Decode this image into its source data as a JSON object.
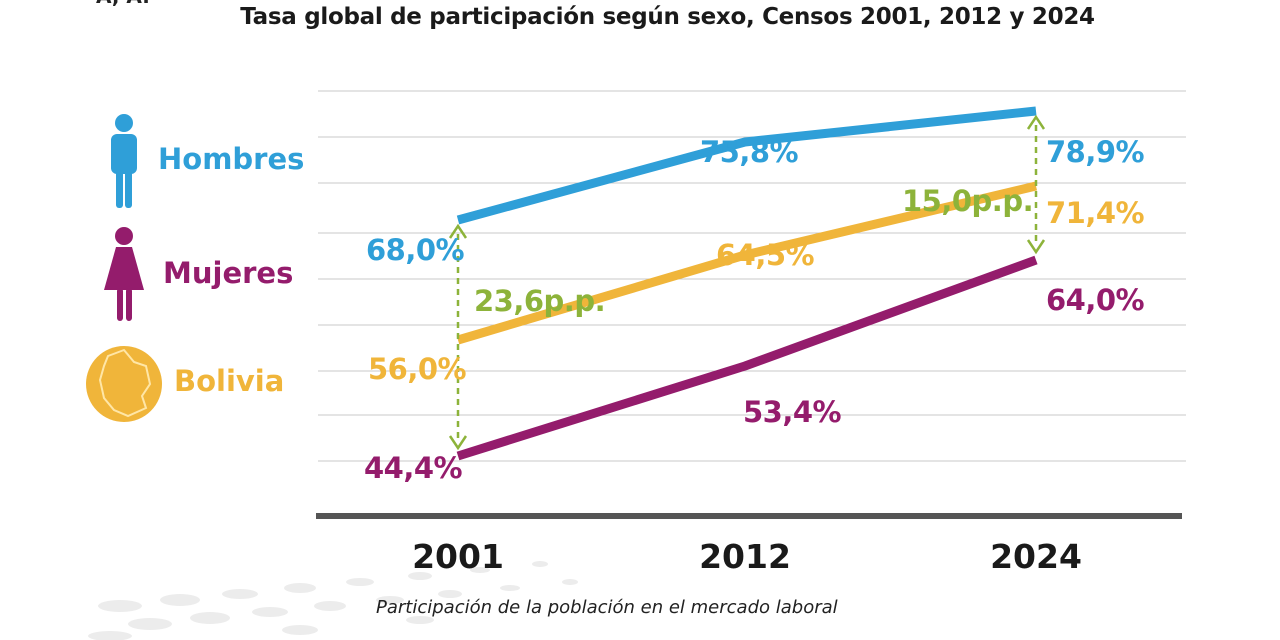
{
  "corner_mark": "Á, A.",
  "subtitle": "Participación de la población en el mercado laboral",
  "legend": [
    {
      "label": "Hombres",
      "icon": "man-icon",
      "color": "#2f9fd8"
    },
    {
      "label": "Mujeres",
      "icon": "woman-icon",
      "color": "#941c6c"
    },
    {
      "label": "Bolivia",
      "icon": "bolivia-map-icon",
      "color": "#f0b53a"
    }
  ],
  "chart_data": {
    "type": "line",
    "title": "Tasa global de participación según sexo, Censos 2001, 2012 y 2024",
    "xlabel": "Participación de la población en el mercado laboral",
    "ylabel": "",
    "categories": [
      "2001",
      "2012",
      "2024"
    ],
    "ylim": [
      40,
      82
    ],
    "grid": true,
    "series": [
      {
        "name": "Hombres",
        "color": "#2f9fd8",
        "values": [
          68.0,
          75.8,
          78.9
        ],
        "labels": [
          "68,0%",
          "75,8%",
          "78,9%"
        ]
      },
      {
        "name": "Bolivia",
        "color": "#f0b53a",
        "values": [
          56.0,
          64.5,
          71.4
        ],
        "labels": [
          "56,0%",
          "64,5%",
          "71,4%"
        ]
      },
      {
        "name": "Mujeres",
        "color": "#941c6c",
        "values": [
          44.4,
          53.4,
          64.0
        ],
        "labels": [
          "44,4%",
          "53,4%",
          "64,0%"
        ]
      }
    ],
    "gaps": [
      {
        "category": "2001",
        "from": 44.4,
        "to": 68.0,
        "label": "23,6p.p.",
        "color": "#8db33a"
      },
      {
        "category": "2024",
        "from": 64.0,
        "to": 78.9,
        "label": "15,0p.p.",
        "color": "#8db33a"
      }
    ]
  }
}
